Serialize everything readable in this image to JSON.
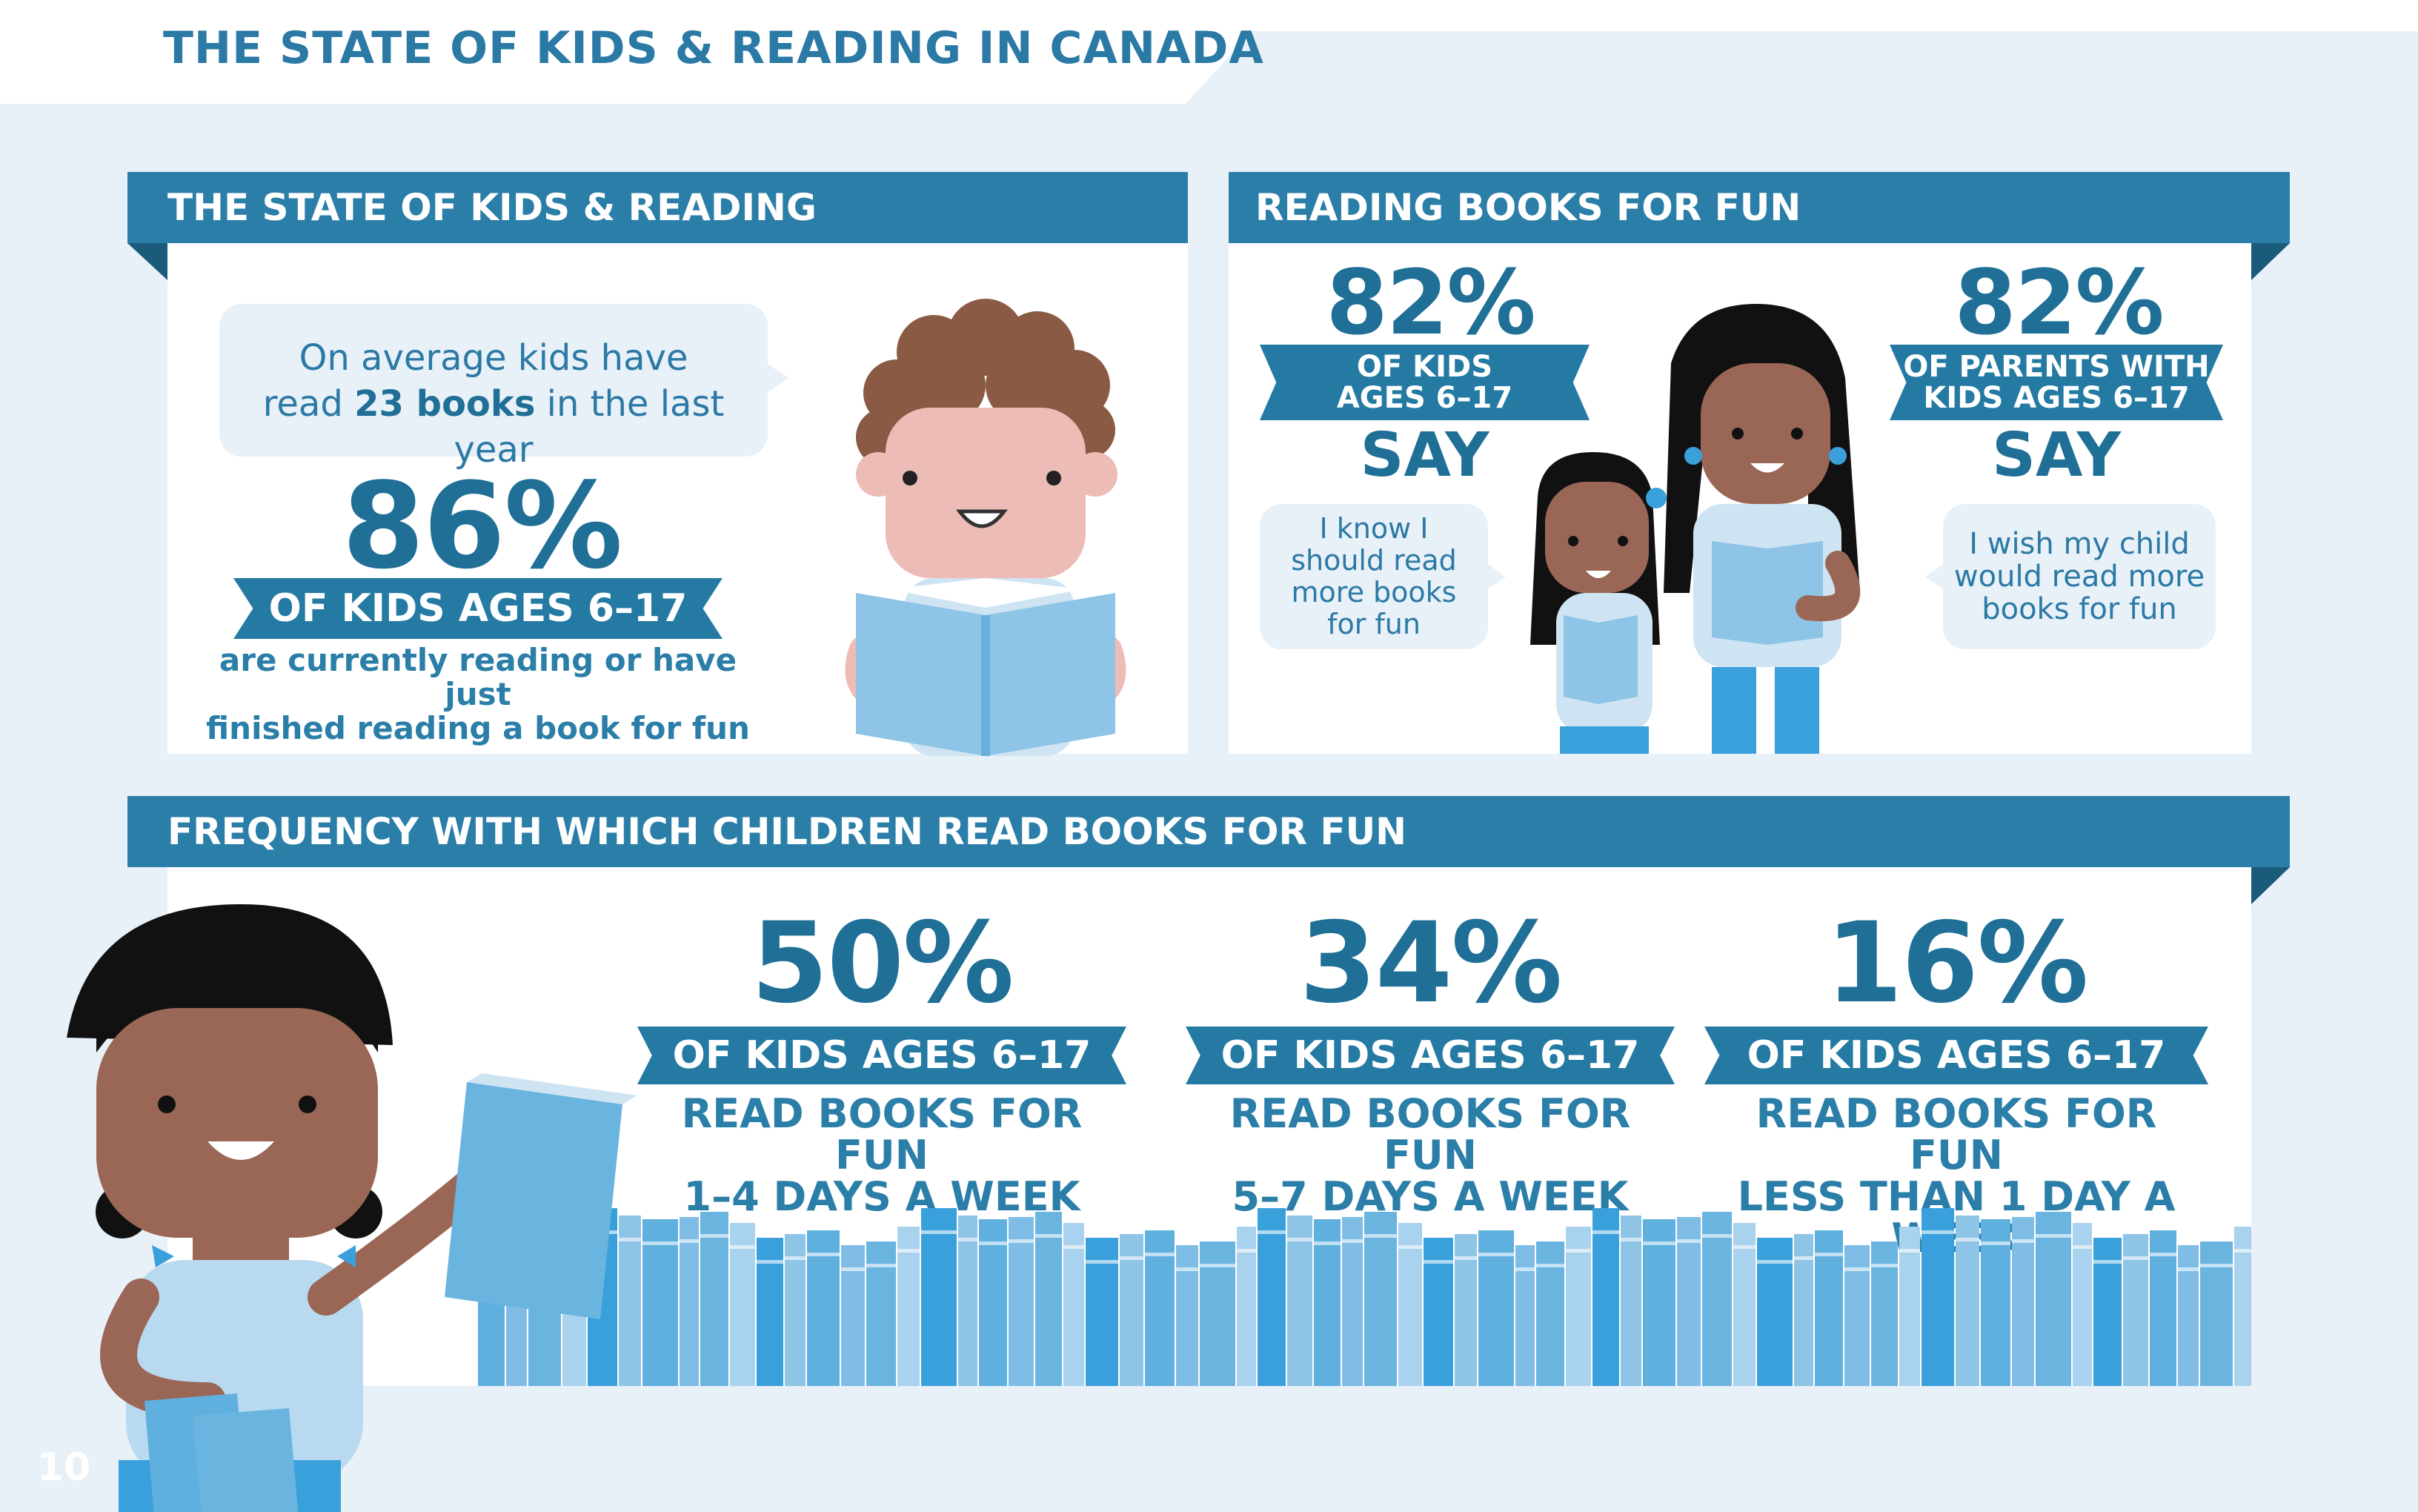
{
  "page": {
    "title": "THE STATE OF KIDS & READING IN CANADA",
    "page_number": "10"
  },
  "colors": {
    "background": "#e8f0f8",
    "banner": "#2a7ea8",
    "text_blue": "#1f6f96",
    "light_blue": "#8ec4e6",
    "book_blue": "#5fb0df"
  },
  "state_panel": {
    "heading": "THE STATE OF KIDS & READING",
    "bubble_line1": "On average kids have",
    "bubble_line2_pre": "read ",
    "bubble_line2_bold": "23 books",
    "bubble_line2_post": " in the last year",
    "stat_value": "86%",
    "stat_label": "OF KIDS AGES 6–17",
    "stat_desc_line1": "are currently reading or have just",
    "stat_desc_line2": "finished reading a book for fun"
  },
  "fun_panel": {
    "heading": "READING BOOKS FOR FUN",
    "kids": {
      "value": "82%",
      "label_line1": "OF KIDS",
      "label_line2": "AGES 6–17",
      "say": "SAY",
      "quote_line1": "I know I",
      "quote_line2": "should read",
      "quote_line3": "more books",
      "quote_line4": "for fun"
    },
    "parents": {
      "value": "82%",
      "label_line1": "OF PARENTS WITH",
      "label_line2": "KIDS AGES 6–17",
      "say": "SAY",
      "quote_line1": "I wish my child",
      "quote_line2": "would read more",
      "quote_line3": "books for fun"
    }
  },
  "frequency_panel": {
    "heading": "FREQUENCY WITH WHICH CHILDREN READ BOOKS FOR FUN",
    "items": [
      {
        "value": "50%",
        "label": "OF KIDS AGES 6–17",
        "line1": "READ BOOKS FOR FUN",
        "line2": "1–4 DAYS A WEEK"
      },
      {
        "value": "34%",
        "label": "OF KIDS AGES 6–17",
        "line1": "READ BOOKS FOR FUN",
        "line2": "5–7 DAYS A WEEK"
      },
      {
        "value": "16%",
        "label": "OF KIDS AGES 6–17",
        "line1": "READ BOOKS FOR FUN",
        "line2": "LESS THAN 1 DAY A WEEK"
      }
    ]
  }
}
